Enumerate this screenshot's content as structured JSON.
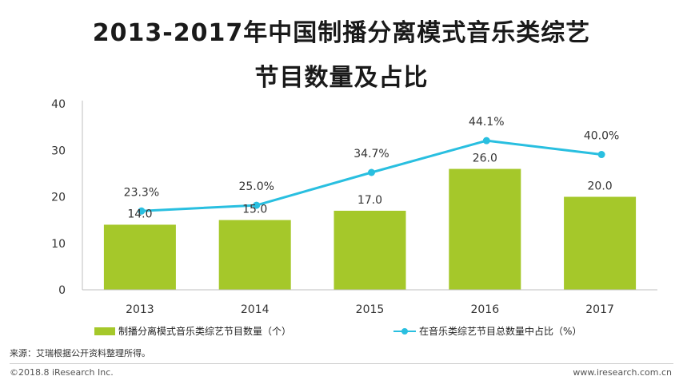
{
  "chart_data": {
    "type": "bar",
    "title_line1": "2013-2017年中国制播分离模式音乐类综艺",
    "title_line2": "节目数量及占比",
    "categories": [
      "2013",
      "2014",
      "2015",
      "2016",
      "2017"
    ],
    "series": [
      {
        "name": "制播分离模式音乐类综艺节目数量（个）",
        "type": "bar",
        "axis": "left",
        "values": [
          14.0,
          15.0,
          17.0,
          26.0,
          20.0
        ],
        "labels": [
          "14.0",
          "15.0",
          "17.0",
          "26.0",
          "20.0"
        ],
        "color": "#a5c82a"
      },
      {
        "name": "在音乐类综艺节目总数量中占比（%）",
        "type": "line",
        "axis": "percent",
        "values": [
          23.3,
          25.0,
          34.7,
          44.1,
          40.0
        ],
        "labels": [
          "23.3%",
          "25.0%",
          "34.7%",
          "44.1%",
          "40.0%"
        ],
        "color": "#29bfe0"
      }
    ],
    "y_axis": {
      "ylim": [
        0,
        40
      ],
      "ticks": [
        "0",
        "10",
        "20",
        "30",
        "40"
      ]
    },
    "percent_axis_range": [
      0,
      55
    ],
    "grid": false
  },
  "source": "来源：艾瑞根据公开资料整理所得。",
  "copyright": "©2018.8 iResearch Inc.",
  "website": "www.iresearch.com.cn"
}
